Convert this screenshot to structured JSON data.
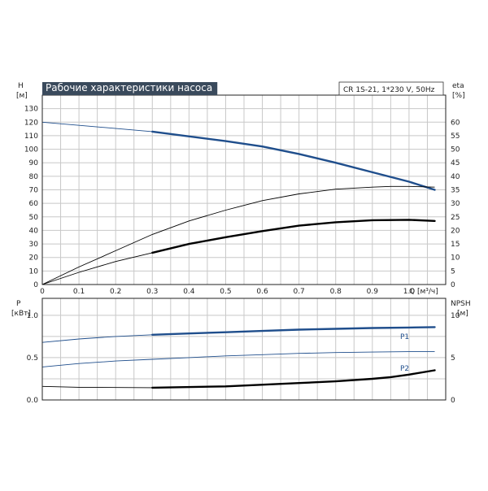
{
  "header": {
    "title": "Рабочие характеристики насоса",
    "model": "CR 1S-21, 1*230 V, 50Hz",
    "title_bg": "#3a4a5c"
  },
  "chart_data": [
    {
      "type": "line",
      "name": "top",
      "x_label": "Q [м³/ч]",
      "y_left_label": [
        "H",
        "[м]"
      ],
      "y_right_label": [
        "eta",
        "[%]"
      ],
      "xlim": [
        0,
        1.1
      ],
      "x_ticks": [
        0,
        0.1,
        0.2,
        0.3,
        0.4,
        0.5,
        0.6,
        0.7,
        0.8,
        0.9,
        1.0
      ],
      "x_tick_labels": [
        "0",
        "0.1",
        "0.2",
        "0.3",
        "0.4",
        "0.5",
        "0.6",
        "0.7",
        "0.8",
        "0.9",
        "1.0"
      ],
      "ylim_left": [
        0,
        140
      ],
      "y_left_ticks": [
        0,
        10,
        20,
        30,
        40,
        50,
        60,
        70,
        80,
        90,
        100,
        110,
        120,
        130
      ],
      "ylim_right": [
        0,
        70
      ],
      "y_right_ticks": [
        0,
        5,
        10,
        15,
        20,
        25,
        30,
        35,
        40,
        45,
        50,
        55,
        60
      ],
      "grid": true,
      "series": [
        {
          "axis": "left",
          "color": "#1f4e8c",
          "x": [
            0,
            0.3,
            0.5,
            0.6,
            0.7,
            0.8,
            0.9,
            1.0,
            1.07
          ],
          "y": [
            120,
            113,
            106,
            102,
            96.5,
            90,
            83,
            76,
            70
          ],
          "bold_from": 0.3
        },
        {
          "axis": "left",
          "color": "#000000",
          "x": [
            0,
            0.1,
            0.2,
            0.3,
            0.4,
            0.5,
            0.6,
            0.7,
            0.8,
            0.9,
            0.95,
            1.0,
            1.07
          ],
          "y": [
            0,
            13,
            25,
            37,
            47,
            55,
            62,
            67,
            70.5,
            72,
            72.5,
            72.5,
            72
          ],
          "bold_from": null
        },
        {
          "axis": "left",
          "color": "#000000",
          "x": [
            0,
            0.1,
            0.2,
            0.3,
            0.4,
            0.5,
            0.6,
            0.7,
            0.8,
            0.9,
            1.0,
            1.07
          ],
          "y": [
            0,
            9,
            17,
            23.5,
            30,
            35,
            39.5,
            43.5,
            46,
            47.5,
            47.8,
            47
          ],
          "bold_from": 0.3
        }
      ]
    },
    {
      "type": "line",
      "name": "bottom",
      "y_left_label": [
        "P",
        "[кВт]"
      ],
      "y_right_label": [
        "NPSH",
        "[м]"
      ],
      "xlim": [
        0,
        1.1
      ],
      "ylim_left": [
        0,
        1.2
      ],
      "y_left_ticks": [
        0,
        0.5,
        1.0
      ],
      "y_left_tick_labels": [
        "0.0",
        "0.5",
        "1.0"
      ],
      "ylim_right": [
        0,
        12
      ],
      "y_right_ticks": [
        0,
        5,
        10
      ],
      "y_right_tick_labels": [
        "0",
        "5",
        "10"
      ],
      "grid": true,
      "series": [
        {
          "name": "P1",
          "axis": "left",
          "color": "#1f4e8c",
          "x": [
            0,
            0.1,
            0.2,
            0.3,
            0.4,
            0.5,
            0.6,
            0.7,
            0.8,
            0.9,
            1.0,
            1.07
          ],
          "y": [
            0.68,
            0.72,
            0.75,
            0.77,
            0.785,
            0.8,
            0.815,
            0.83,
            0.84,
            0.85,
            0.855,
            0.86
          ],
          "bold_from": 0.3
        },
        {
          "name": "P2",
          "axis": "left",
          "color": "#1f4e8c",
          "x": [
            0,
            0.1,
            0.2,
            0.3,
            0.4,
            0.5,
            0.6,
            0.7,
            0.8,
            0.9,
            1.0,
            1.07
          ],
          "y": [
            0.39,
            0.43,
            0.46,
            0.48,
            0.5,
            0.52,
            0.535,
            0.55,
            0.56,
            0.565,
            0.57,
            0.57
          ],
          "bold_from": null
        },
        {
          "axis": "right",
          "color": "#000000",
          "x": [
            0,
            0.1,
            0.3,
            0.5,
            0.7,
            0.8,
            0.9,
            0.95,
            1.0,
            1.07
          ],
          "y": [
            1.6,
            1.5,
            1.45,
            1.6,
            2.0,
            2.2,
            2.5,
            2.7,
            3.0,
            3.5
          ],
          "bold_from": 0.3
        }
      ]
    }
  ]
}
